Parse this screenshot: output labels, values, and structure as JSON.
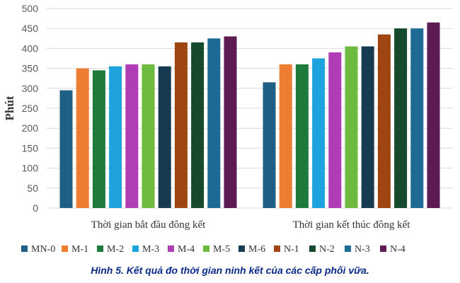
{
  "chart_data": {
    "type": "bar",
    "ylabel": "Phút",
    "xlabel": "",
    "ylim": [
      0,
      500
    ],
    "yticks": [
      0,
      50,
      100,
      150,
      200,
      250,
      300,
      350,
      400,
      450,
      500
    ],
    "grid": true,
    "legend_position": "bottom",
    "categories": [
      "Thời gian bắt đầu đông kết",
      "Thời gian kết thúc đông kết"
    ],
    "series": [
      {
        "name": "MN-0",
        "color": "#1f5f86",
        "values": [
          295,
          315
        ]
      },
      {
        "name": "M-1",
        "color": "#ed7d31",
        "values": [
          350,
          360
        ]
      },
      {
        "name": "M-2",
        "color": "#1e7a3a",
        "values": [
          345,
          360
        ]
      },
      {
        "name": "M-3",
        "color": "#1fa3dd",
        "values": [
          355,
          375
        ]
      },
      {
        "name": "M-4",
        "color": "#b03cb6",
        "values": [
          360,
          390
        ]
      },
      {
        "name": "M-5",
        "color": "#6dba3f",
        "values": [
          360,
          405
        ]
      },
      {
        "name": "M-6",
        "color": "#163a50",
        "values": [
          355,
          405
        ]
      },
      {
        "name": "N-1",
        "color": "#9e4511",
        "values": [
          415,
          435
        ]
      },
      {
        "name": "N-2",
        "color": "#154a2c",
        "values": [
          415,
          450
        ]
      },
      {
        "name": "N-3",
        "color": "#1d6a95",
        "values": [
          425,
          450
        ]
      },
      {
        "name": "N-4",
        "color": "#5e1a52",
        "values": [
          430,
          465
        ]
      }
    ]
  },
  "caption": "Hình 5. Kết quả đo thời gian ninh kết của các cấp phối vữa."
}
